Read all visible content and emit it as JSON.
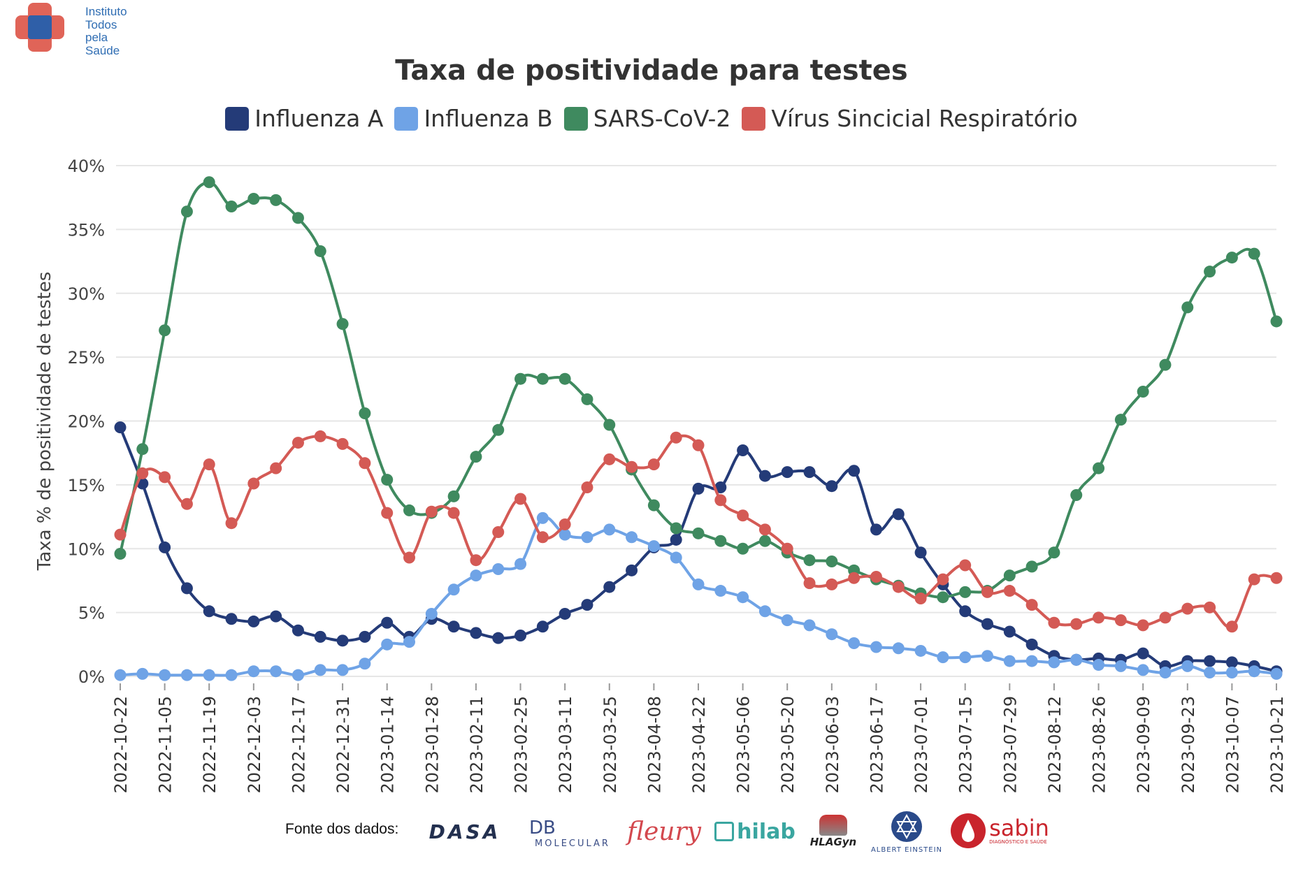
{
  "org": {
    "name": "Instituto\nTodos\npela\nSaúde"
  },
  "chart_data": {
    "type": "line",
    "title": "Taxa de positividade para testes",
    "ylabel": "Taxa % de positividade de testes",
    "xlabel": "",
    "ylim": [
      0,
      40
    ],
    "yticks": [
      "0%",
      "5%",
      "10%",
      "15%",
      "20%",
      "25%",
      "30%",
      "35%",
      "40%"
    ],
    "ytick_values": [
      0,
      5,
      10,
      15,
      20,
      25,
      30,
      35,
      40
    ],
    "x_tick_labels": [
      "2022-10-22",
      "2022-11-05",
      "2022-11-19",
      "2022-12-03",
      "2022-12-17",
      "2022-12-31",
      "2023-01-14",
      "2023-01-28",
      "2023-02-11",
      "2023-02-25",
      "2023-03-11",
      "2023-03-25",
      "2023-04-08",
      "2023-04-22",
      "2023-05-06",
      "2023-05-20",
      "2023-06-03",
      "2023-06-17",
      "2023-07-01",
      "2023-07-15",
      "2023-07-29",
      "2023-08-12",
      "2023-08-26",
      "2023-09-09",
      "2023-09-23",
      "2023-10-07",
      "2023-10-21"
    ],
    "x_start": "2022-10-22",
    "x_step_days": 7,
    "legend_position": "top",
    "grid": true,
    "series": [
      {
        "name": "Influenza A",
        "color": "#243b78",
        "values": [
          19.5,
          15.1,
          10.1,
          6.9,
          5.1,
          4.5,
          4.3,
          4.7,
          3.6,
          3.1,
          2.8,
          3.1,
          4.2,
          3.1,
          4.5,
          3.9,
          3.4,
          3.0,
          3.2,
          3.9,
          4.9,
          5.6,
          7.0,
          8.3,
          10.1,
          10.7,
          14.7,
          14.8,
          17.7,
          15.7,
          16.0,
          16.0,
          14.9,
          16.1,
          11.5,
          12.7,
          9.7,
          7.2,
          5.1,
          4.1,
          3.5,
          2.5,
          1.6,
          1.3,
          1.4,
          1.3,
          1.8,
          0.8,
          1.2,
          1.2,
          1.1,
          0.8,
          0.4
        ]
      },
      {
        "name": "Influenza B",
        "color": "#6fa3e6",
        "values": [
          0.1,
          0.2,
          0.1,
          0.1,
          0.1,
          0.1,
          0.4,
          0.4,
          0.1,
          0.5,
          0.5,
          1.0,
          2.5,
          2.7,
          4.9,
          6.8,
          7.9,
          8.4,
          8.8,
          12.4,
          11.1,
          10.9,
          11.5,
          10.9,
          10.2,
          9.3,
          7.2,
          6.7,
          6.2,
          5.1,
          4.4,
          4.0,
          3.3,
          2.6,
          2.3,
          2.2,
          2.0,
          1.5,
          1.5,
          1.6,
          1.2,
          1.2,
          1.1,
          1.3,
          0.9,
          0.8,
          0.5,
          0.3,
          0.8,
          0.3,
          0.3,
          0.4,
          0.2
        ]
      },
      {
        "name": "SARS-CoV-2",
        "color": "#3f8a5f",
        "values": [
          9.6,
          17.8,
          27.1,
          36.4,
          38.7,
          36.8,
          37.4,
          37.3,
          35.9,
          33.3,
          27.6,
          20.6,
          15.4,
          13.0,
          12.8,
          14.1,
          17.2,
          19.3,
          23.3,
          23.3,
          23.3,
          21.7,
          19.7,
          16.2,
          13.4,
          11.6,
          11.2,
          10.6,
          10.0,
          10.6,
          9.7,
          9.1,
          9.0,
          8.3,
          7.6,
          7.1,
          6.5,
          6.2,
          6.6,
          6.7,
          7.9,
          8.6,
          9.7,
          14.2,
          16.3,
          20.1,
          22.3,
          24.4,
          28.9,
          31.7,
          32.8,
          33.1,
          27.8
        ]
      },
      {
        "name": "Vírus Sincicial Respiratório",
        "color": "#d45a55",
        "values": [
          11.1,
          15.9,
          15.6,
          13.5,
          16.6,
          12.0,
          15.1,
          16.3,
          18.3,
          18.8,
          18.2,
          16.7,
          12.8,
          9.3,
          12.9,
          12.8,
          9.1,
          11.3,
          13.9,
          10.9,
          11.9,
          14.8,
          17.0,
          16.4,
          16.6,
          18.7,
          18.1,
          13.8,
          12.6,
          11.5,
          10.0,
          7.3,
          7.2,
          7.7,
          7.8,
          7.0,
          6.1,
          7.6,
          8.7,
          6.6,
          6.7,
          5.6,
          4.2,
          4.1,
          4.6,
          4.4,
          4.0,
          4.6,
          5.3,
          5.4,
          3.9,
          7.6,
          7.7
        ]
      }
    ]
  },
  "sources": {
    "label": "Fonte dos dados:",
    "logos": [
      {
        "name": "dasa",
        "text": "DASA"
      },
      {
        "name": "db-molecular",
        "text": "DB",
        "sub": "MOLECULAR"
      },
      {
        "name": "fleury",
        "text": "fleury"
      },
      {
        "name": "hilab",
        "text": "hilab"
      },
      {
        "name": "hlagyn",
        "text": "HLAGyn"
      },
      {
        "name": "albert-einstein",
        "text": "ALBERT EINSTEIN"
      },
      {
        "name": "sabin",
        "text": "sabin",
        "sub": "DIAGNÓSTICO E SAÚDE"
      }
    ]
  }
}
